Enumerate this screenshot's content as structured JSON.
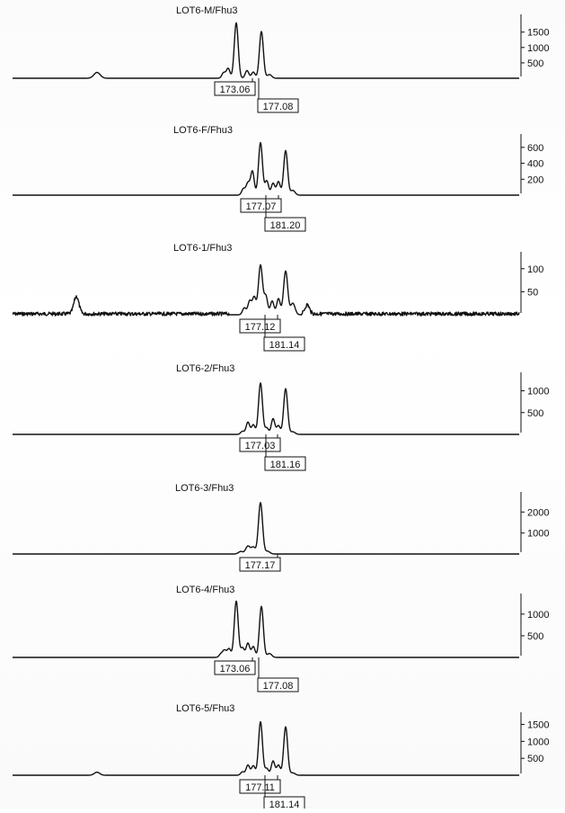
{
  "chart_data": [
    {
      "type": "line",
      "title": "LOT6-M/Fhu3",
      "yticks": [
        500,
        1000,
        1500
      ],
      "ylim": [
        0,
        1900
      ],
      "peaks": [
        {
          "x": 108,
          "h": 190,
          "w": 3.5
        },
        {
          "x": 249,
          "h": 180,
          "w": 2.0
        },
        {
          "x": 254,
          "h": 320,
          "w": 2.0
        },
        {
          "x": 263,
          "h": 1800,
          "w": 2.2
        },
        {
          "x": 275,
          "h": 250,
          "w": 2.0
        },
        {
          "x": 282,
          "h": 200,
          "w": 2.0
        },
        {
          "x": 291,
          "h": 1520,
          "w": 2.2
        },
        {
          "x": 300,
          "h": 120,
          "w": 2.5
        }
      ],
      "allele_labels": [
        "173.06",
        "177.08"
      ]
    },
    {
      "type": "line",
      "title": "LOT6-F/Fhu3",
      "yticks": [
        200,
        400,
        600
      ],
      "ylim": [
        0,
        700
      ],
      "peaks": [
        {
          "x": 271,
          "h": 80,
          "w": 2.0
        },
        {
          "x": 276,
          "h": 150,
          "w": 2.0
        },
        {
          "x": 281,
          "h": 300,
          "w": 2.0
        },
        {
          "x": 290,
          "h": 660,
          "w": 2.2
        },
        {
          "x": 297,
          "h": 180,
          "w": 2.0
        },
        {
          "x": 304,
          "h": 150,
          "w": 2.0
        },
        {
          "x": 310,
          "h": 170,
          "w": 2.0
        },
        {
          "x": 318,
          "h": 560,
          "w": 2.2
        },
        {
          "x": 326,
          "h": 60,
          "w": 2.5
        }
      ],
      "allele_labels": [
        "177.07",
        "181.20"
      ]
    },
    {
      "type": "line",
      "title": "LOT6-1/Fhu3",
      "yticks": [
        50,
        100
      ],
      "ylim": [
        0,
        125
      ],
      "peaks": [
        {
          "x": 85,
          "h": 38,
          "w": 2.8
        },
        {
          "x": 272,
          "h": 15,
          "w": 2.0
        },
        {
          "x": 278,
          "h": 30,
          "w": 2.0
        },
        {
          "x": 283,
          "h": 38,
          "w": 2.0
        },
        {
          "x": 290,
          "h": 108,
          "w": 2.3
        },
        {
          "x": 296,
          "h": 40,
          "w": 2.0
        },
        {
          "x": 303,
          "h": 30,
          "w": 2.0
        },
        {
          "x": 310,
          "h": 35,
          "w": 2.0
        },
        {
          "x": 318,
          "h": 95,
          "w": 2.3
        },
        {
          "x": 326,
          "h": 25,
          "w": 2.5
        },
        {
          "x": 342,
          "h": 20,
          "w": 2.5
        }
      ],
      "allele_labels": [
        "177.12",
        "181.14"
      ]
    },
    {
      "type": "line",
      "title": "LOT6-2/Fhu3",
      "yticks": [
        500,
        1000
      ],
      "ylim": [
        0,
        1300
      ],
      "peaks": [
        {
          "x": 270,
          "h": 70,
          "w": 2.0
        },
        {
          "x": 276,
          "h": 280,
          "w": 2.0
        },
        {
          "x": 282,
          "h": 220,
          "w": 2.0
        },
        {
          "x": 290,
          "h": 1180,
          "w": 2.2
        },
        {
          "x": 297,
          "h": 150,
          "w": 2.0
        },
        {
          "x": 304,
          "h": 360,
          "w": 2.0
        },
        {
          "x": 310,
          "h": 200,
          "w": 2.0
        },
        {
          "x": 318,
          "h": 1050,
          "w": 2.2
        },
        {
          "x": 326,
          "h": 60,
          "w": 2.5
        }
      ],
      "allele_labels": [
        "177.03",
        "181.16"
      ]
    },
    {
      "type": "line",
      "title": "LOT6-3/Fhu3",
      "yticks": [
        1000,
        2000
      ],
      "ylim": [
        0,
        2700
      ],
      "peaks": [
        {
          "x": 268,
          "h": 120,
          "w": 2.5
        },
        {
          "x": 276,
          "h": 380,
          "w": 2.5
        },
        {
          "x": 282,
          "h": 320,
          "w": 2.2
        },
        {
          "x": 290,
          "h": 2450,
          "w": 2.3
        },
        {
          "x": 298,
          "h": 130,
          "w": 2.5
        }
      ],
      "allele_labels": [
        "177.17"
      ]
    },
    {
      "type": "line",
      "title": "LOT6-4/Fhu3",
      "yticks": [
        500,
        1000
      ],
      "ylim": [
        0,
        1350
      ],
      "peaks": [
        {
          "x": 246,
          "h": 80,
          "w": 2.0
        },
        {
          "x": 250,
          "h": 160,
          "w": 2.0
        },
        {
          "x": 255,
          "h": 200,
          "w": 2.0
        },
        {
          "x": 263,
          "h": 1300,
          "w": 2.2
        },
        {
          "x": 270,
          "h": 220,
          "w": 2.0
        },
        {
          "x": 276,
          "h": 330,
          "w": 2.0
        },
        {
          "x": 282,
          "h": 250,
          "w": 2.0
        },
        {
          "x": 291,
          "h": 1180,
          "w": 2.2
        },
        {
          "x": 300,
          "h": 90,
          "w": 2.5
        }
      ],
      "allele_labels": [
        "173.06",
        "177.08"
      ]
    },
    {
      "type": "line",
      "title": "LOT6-5/Fhu3",
      "yticks": [
        500,
        1000,
        1500
      ],
      "ylim": [
        0,
        1700
      ],
      "peaks": [
        {
          "x": 108,
          "h": 90,
          "w": 3.0
        },
        {
          "x": 270,
          "h": 100,
          "w": 2.0
        },
        {
          "x": 276,
          "h": 300,
          "w": 2.0
        },
        {
          "x": 282,
          "h": 280,
          "w": 2.0
        },
        {
          "x": 290,
          "h": 1580,
          "w": 2.2
        },
        {
          "x": 297,
          "h": 200,
          "w": 2.0
        },
        {
          "x": 304,
          "h": 420,
          "w": 2.0
        },
        {
          "x": 310,
          "h": 300,
          "w": 2.0
        },
        {
          "x": 318,
          "h": 1430,
          "w": 2.2
        },
        {
          "x": 326,
          "h": 70,
          "w": 2.5
        }
      ],
      "allele_labels": [
        "177.11",
        "181.14"
      ]
    }
  ]
}
